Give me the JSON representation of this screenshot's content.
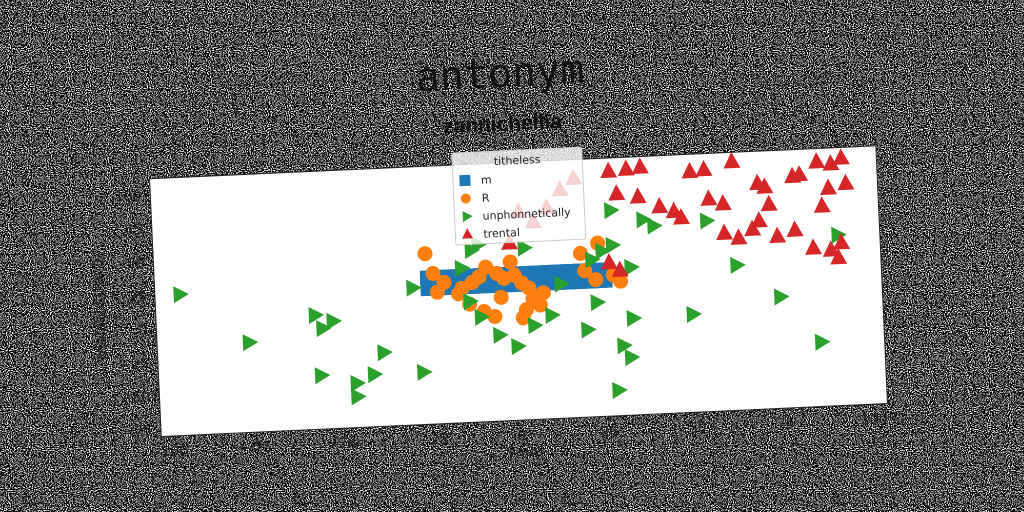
{
  "chart_data": {
    "type": "scatter",
    "suptitle": "antonym",
    "title": "zannichellia",
    "xlabel": "yaud",
    "ylabel": "malacostraca",
    "xlim": [
      -102,
      104
    ],
    "ylim": [
      -80,
      112
    ],
    "xticks": [
      -100,
      -75,
      -50,
      -25,
      0,
      25,
      50,
      75,
      100
    ],
    "yticks": [
      -75,
      -50,
      -25,
      0,
      25,
      50,
      75,
      100
    ],
    "xtick_labels": [
      "−100",
      "−75",
      "−50",
      "−25",
      "0",
      "25",
      "50",
      "75",
      "100"
    ],
    "ytick_labels": [
      "−75",
      "−50",
      "−25",
      "0",
      "25",
      "50",
      "75",
      "100"
    ],
    "grid": false,
    "legend": {
      "title": "titheless",
      "placement": "top-center",
      "entries": [
        "m",
        "R",
        "unphonnetically",
        "trental"
      ]
    },
    "series": [
      {
        "name": "m",
        "marker": "square",
        "color": "#1f77b4",
        "x0": -25,
        "x1": 27,
        "y0": 20,
        "y1": 30
      },
      {
        "name": "R",
        "marker": "circle",
        "color": "#ff7f0e",
        "points": [
          [
            -25,
            47
          ],
          [
            -23,
            32
          ],
          [
            -20,
            25
          ],
          [
            -22,
            18
          ],
          [
            -15,
            20
          ],
          [
            -12,
            24
          ],
          [
            -10,
            28
          ],
          [
            -8,
            35
          ],
          [
            -5,
            30
          ],
          [
            -3,
            26
          ],
          [
            0,
            28
          ],
          [
            2,
            22
          ],
          [
            4,
            18
          ],
          [
            5,
            10
          ],
          [
            7,
            5
          ],
          [
            -13,
            8
          ],
          [
            -9,
            2
          ],
          [
            -6,
            -2
          ],
          [
            -4,
            12
          ],
          [
            3,
            2
          ],
          [
            20,
            29
          ],
          [
            23,
            22
          ],
          [
            28,
            25
          ],
          [
            30,
            20
          ],
          [
            19,
            42
          ],
          [
            24,
            49
          ],
          [
            -1,
            38
          ],
          [
            -16,
            16
          ],
          [
            8,
            14
          ],
          [
            2,
            -4
          ]
        ]
      },
      {
        "name": "unphonnetically",
        "marker": "triangle-right",
        "color": "#2ca02c",
        "points": [
          [
            -95,
            25
          ],
          [
            -76,
            -13
          ],
          [
            -57,
            5
          ],
          [
            -55,
            -5
          ],
          [
            -52,
            0
          ],
          [
            -56,
            -40
          ],
          [
            -46,
            -47
          ],
          [
            -41,
            -41
          ],
          [
            -38,
            -25
          ],
          [
            -46,
            -57
          ],
          [
            -27,
            -41
          ],
          [
            -29,
            22
          ],
          [
            -15,
            35
          ],
          [
            -12,
            48
          ],
          [
            -10,
            52
          ],
          [
            -13,
            10
          ],
          [
            -10,
            -2
          ],
          [
            -5,
            -16
          ],
          [
            0,
            -25
          ],
          [
            5,
            -10
          ],
          [
            10,
            -3
          ],
          [
            20,
            -15
          ],
          [
            23,
            5
          ],
          [
            30,
            -28
          ],
          [
            32,
            -37
          ],
          [
            33,
            -8
          ],
          [
            28,
            -61
          ],
          [
            28,
            73
          ],
          [
            33,
            30
          ],
          [
            28,
            47
          ],
          [
            37,
            65
          ],
          [
            40,
            60
          ],
          [
            25,
            43
          ],
          [
            50,
            -7
          ],
          [
            55,
            62
          ],
          [
            63,
            28
          ],
          [
            75,
            3
          ],
          [
            86,
            -32
          ],
          [
            92,
            47
          ],
          [
            3,
            48
          ],
          [
            13,
            20
          ],
          [
            22,
            37
          ]
        ]
      },
      {
        "name": "trental",
        "marker": "triangle-up",
        "color": "#d62728",
        "points": [
          [
            28,
            102
          ],
          [
            30,
            85
          ],
          [
            33,
            103
          ],
          [
            37,
            104
          ],
          [
            36,
            82
          ],
          [
            42,
            74
          ],
          [
            46,
            70
          ],
          [
            48,
            65
          ],
          [
            51,
            99
          ],
          [
            55,
            100
          ],
          [
            56,
            78
          ],
          [
            60,
            74
          ],
          [
            63,
            105
          ],
          [
            60,
            52
          ],
          [
            64,
            48
          ],
          [
            68,
            54
          ],
          [
            70,
            88
          ],
          [
            72,
            85
          ],
          [
            73,
            72
          ],
          [
            70,
            60
          ],
          [
            75,
            48
          ],
          [
            80,
            52
          ],
          [
            82,
            93
          ],
          [
            87,
            102
          ],
          [
            88,
            69
          ],
          [
            90,
            82
          ],
          [
            91,
            100
          ],
          [
            94,
            104
          ],
          [
            95,
            85
          ],
          [
            93,
            41
          ],
          [
            90,
            36
          ],
          [
            92,
            30
          ],
          [
            85,
            38
          ],
          [
            80,
            92
          ],
          [
            6,
            67
          ],
          [
            10,
            77
          ],
          [
            14,
            90
          ],
          [
            18,
            98
          ],
          [
            2,
            75
          ],
          [
            -1,
            52
          ],
          [
            27,
            34
          ],
          [
            30,
            28
          ]
        ]
      }
    ]
  }
}
